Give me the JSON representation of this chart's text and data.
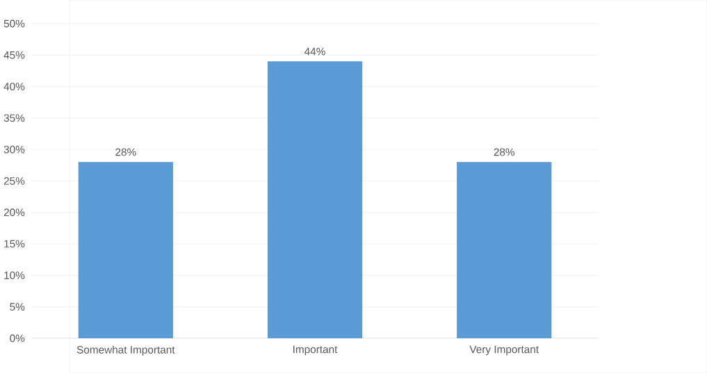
{
  "chart_data": {
    "type": "bar",
    "categories": [
      "Somewhat Important",
      "Important",
      "Very Important"
    ],
    "values": [
      28,
      44,
      28
    ],
    "value_labels": [
      "28%",
      "44%",
      "28%"
    ],
    "color": "#5b9bd5",
    "ylim": [
      0,
      50
    ],
    "yticks": [
      {
        "value": 0,
        "label": "0%"
      },
      {
        "value": 5,
        "label": "5%"
      },
      {
        "value": 10,
        "label": "10%"
      },
      {
        "value": 15,
        "label": "15%"
      },
      {
        "value": 20,
        "label": "20%"
      },
      {
        "value": 25,
        "label": "25%"
      },
      {
        "value": 30,
        "label": "30%"
      },
      {
        "value": 35,
        "label": "35%"
      },
      {
        "value": 40,
        "label": "40%"
      },
      {
        "value": 45,
        "label": "45%"
      },
      {
        "value": 50,
        "label": "50%"
      }
    ],
    "grid": "y"
  }
}
